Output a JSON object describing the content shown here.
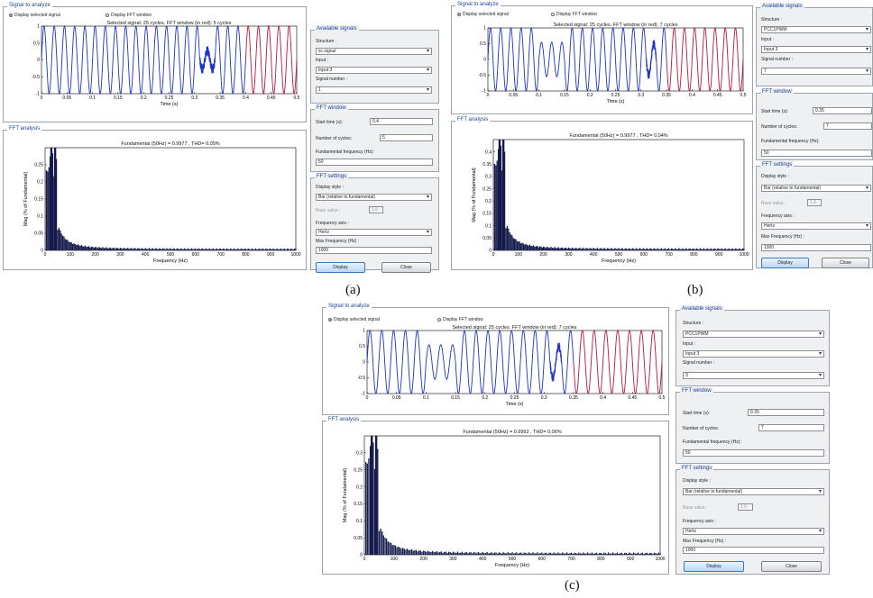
{
  "captions": [
    "(a)",
    "(b)",
    "(c)"
  ],
  "common": {
    "signal_legend": "Signal to analyze",
    "radio_signal": "Display selected signal",
    "radio_fft": "Display FFT window",
    "time_label": "Time (s)",
    "fft_legend": "FFT analysis",
    "ylabel": "Mag (% of Fundamental)",
    "xlabel": "Frequency (Hz)",
    "avail_legend": "Available signals",
    "structure_label": "Structure :",
    "input_label": "Input :",
    "signal_number_label": "Signal number :",
    "fftwin_legend": "FFT window",
    "start_time_label": "Start time (s):",
    "num_cycles_label": "Number of cycles:",
    "fund_freq_label": "Fundamental frequency (Hz):",
    "fftset_legend": "FFT settings",
    "display_style_label": "Display style :",
    "display_style_value": "Bar (relative to fundamental)",
    "base_value_label": "Base value :",
    "base_value": "1.0",
    "freq_axis_label": "Frequency axis :",
    "max_freq_label": "Max Frequency (Hz) :",
    "max_freq": "1000",
    "display_button": "Display",
    "close_button": "Close"
  },
  "panels": [
    {
      "selected_title": "Selected signal: 25 cycles. FFT window (in red): 5 cycles",
      "fft_title": "Fundamental (50Hz) = 0.9977 , THD= 0.05%",
      "structure": "sc.signal",
      "input": "Input 3",
      "signal_number": "1",
      "start_time": "0.4",
      "num_cycles": "5",
      "fund_freq": "50",
      "freq_axis": "Hertz"
    },
    {
      "selected_title": "Selected signal: 25 cycles. FFT window (in red): 7 cycles",
      "fft_title": "Fundamental (50Hz) = 0.9977 , THD= 0.04%",
      "structure": "PCC1PWM",
      "input": "Input 3",
      "signal_number": "7",
      "start_time": "0.35",
      "num_cycles": "7",
      "fund_freq": "50",
      "freq_axis": "Hertz"
    },
    {
      "selected_title": "Selected signal: 25 cycles. FFT window (in red): 7 cycles",
      "fft_title": "Fundamental (50Hz) = 0.9992 , THD= 0.06%",
      "structure": "PCC1PWM",
      "input": "Input 3",
      "signal_number": "3",
      "start_time": "0.35",
      "num_cycles": "7",
      "fund_freq": "50",
      "freq_axis": "Hertz"
    }
  ],
  "chart_data": [
    {
      "type": "line",
      "title": "Selected signal: 25 cycles. FFT window (in red): 5 cycles",
      "xlabel": "Time (s)",
      "xlim": [
        0,
        0.5
      ],
      "ylim": [
        -1,
        1
      ],
      "xticks": [
        "0",
        "0.05",
        "0.1",
        "0.15",
        "0.2",
        "0.25",
        "0.3",
        "0.35",
        "0.4",
        "0.45",
        "0.5"
      ],
      "yticks": [
        "1",
        "0.5",
        "0",
        "-0.5",
        "-1"
      ],
      "frequency_hz": 50,
      "fft_window_s": [
        0.4,
        0.5
      ],
      "disturbance_s": [
        0.31,
        0.34
      ]
    },
    {
      "type": "bar",
      "title": "Fundamental (50Hz) = 0.9977 , THD= 0.05%",
      "xlabel": "Frequency (Hz)",
      "ylabel": "Mag (% of Fundamental)",
      "xlim": [
        0,
        1000
      ],
      "ylim": [
        0,
        0.3
      ],
      "xticks": [
        "0",
        "100",
        "200",
        "300",
        "400",
        "500",
        "600",
        "700",
        "800",
        "900",
        "1000"
      ],
      "yticks": [
        "0.25",
        "0.2",
        "0.15",
        "0.1",
        "0.05",
        "0"
      ]
    },
    {
      "type": "line",
      "title": "Selected signal: 25 cycles. FFT window (in red): 7 cycles",
      "xlabel": "Time (s)",
      "xlim": [
        0,
        0.5
      ],
      "ylim": [
        -1,
        1
      ],
      "xticks": [
        "0",
        "0.05",
        "0.1",
        "0.15",
        "0.2",
        "0.25",
        "0.3",
        "0.35",
        "0.4",
        "0.45",
        "0.5"
      ],
      "yticks": [
        "1",
        "0.5",
        "0",
        "-0.5",
        "-1"
      ],
      "frequency_hz": 50,
      "fft_window_s": [
        0.35,
        0.5
      ],
      "disturbance_s": [
        0.1,
        0.15
      ],
      "disturbance2_s": [
        0.31,
        0.33
      ]
    },
    {
      "type": "bar",
      "title": "Fundamental (50Hz) = 0.9977 , THD= 0.04%",
      "xlabel": "Frequency (Hz)",
      "ylabel": "Mag (% of Fundamental)",
      "xlim": [
        0,
        1000
      ],
      "ylim": [
        0,
        0.45
      ],
      "xticks": [
        "0",
        "100",
        "200",
        "300",
        "400",
        "500",
        "600",
        "700",
        "800",
        "900",
        "1000"
      ],
      "yticks": [
        "0.4",
        "0.35",
        "0.3",
        "0.25",
        "0.2",
        "0.15",
        "0.1",
        "0.05",
        "0"
      ]
    },
    {
      "type": "line",
      "title": "Selected signal: 25 cycles. FFT window (in red): 7 cycles",
      "xlabel": "Time (s)",
      "xlim": [
        0,
        0.5
      ],
      "ylim": [
        -1,
        1
      ],
      "xticks": [
        "0",
        "0.05",
        "0.1",
        "0.15",
        "0.2",
        "0.25",
        "0.3",
        "0.35",
        "0.4",
        "0.45",
        "0.5"
      ],
      "yticks": [
        "1",
        "0.5",
        "0",
        "-0.5",
        "-1"
      ],
      "frequency_hz": 50,
      "fft_window_s": [
        0.35,
        0.5
      ],
      "disturbance_s": [
        0.1,
        0.15
      ],
      "disturbance2_s": [
        0.31,
        0.33
      ]
    },
    {
      "type": "bar",
      "title": "Fundamental (50Hz) = 0.9992 , THD= 0.06%",
      "xlabel": "Frequency (Hz)",
      "ylabel": "Mag (% of Fundamental)",
      "xlim": [
        0,
        1000
      ],
      "ylim": [
        0,
        0.35
      ],
      "xticks": [
        "0",
        "100",
        "200",
        "300",
        "400",
        "500",
        "600",
        "700",
        "800",
        "900",
        "1000"
      ],
      "yticks": [
        "0.3",
        "0.25",
        "0.2",
        "0.15",
        "0.1",
        "0.05",
        "0"
      ]
    }
  ]
}
